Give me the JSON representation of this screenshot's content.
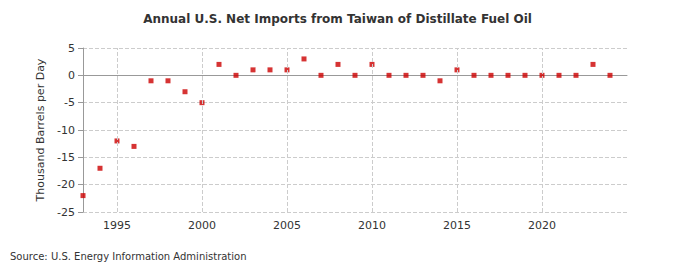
{
  "chart_data": {
    "type": "scatter",
    "title": "Annual U.S. Net Imports from Taiwan of Distillate Fuel Oil",
    "y_label": "Thousand Barrels per Day",
    "source": "Source: U.S. Energy Information Administration",
    "x": [
      1993,
      1994,
      1995,
      1996,
      1997,
      1998,
      1999,
      2000,
      2001,
      2002,
      2003,
      2004,
      2005,
      2006,
      2007,
      2008,
      2009,
      2010,
      2011,
      2012,
      2013,
      2014,
      2015,
      2016,
      2017,
      2018,
      2019,
      2020,
      2021,
      2022,
      2023,
      2024
    ],
    "values": [
      -22,
      -17,
      -12,
      -13,
      -1,
      -1,
      -3,
      -5,
      2,
      0,
      1,
      1,
      1,
      3,
      0,
      2,
      0,
      2,
      0,
      0,
      0,
      -1,
      1,
      0,
      0,
      0,
      0,
      0,
      0,
      0,
      2,
      0
    ],
    "color": "#cc0000",
    "marker": "square",
    "xlim": [
      1993,
      2025
    ],
    "xticks": [
      1995,
      2000,
      2005,
      2010,
      2015,
      2020
    ],
    "ylim": [
      -25,
      5
    ],
    "yticks": [
      -25,
      -20,
      -15,
      -10,
      -5,
      0,
      5
    ],
    "grid": true
  }
}
